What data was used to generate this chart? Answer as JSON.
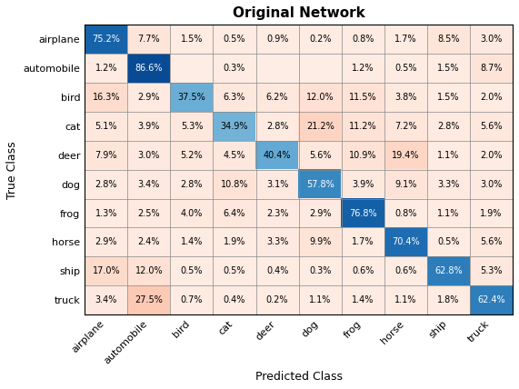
{
  "title": "Original Network",
  "xlabel": "Predicted Class",
  "ylabel": "True Class",
  "classes": [
    "airplane",
    "automobile",
    "bird",
    "cat",
    "deer",
    "dog",
    "frog",
    "horse",
    "ship",
    "truck"
  ],
  "matrix": [
    [
      75.2,
      7.7,
      1.5,
      0.5,
      0.9,
      0.2,
      0.8,
      1.7,
      8.5,
      3.0
    ],
    [
      1.2,
      86.6,
      0.0,
      0.3,
      0.0,
      0.0,
      1.2,
      0.5,
      1.5,
      8.7
    ],
    [
      16.3,
      2.9,
      37.5,
      6.3,
      6.2,
      12.0,
      11.5,
      3.8,
      1.5,
      2.0
    ],
    [
      5.1,
      3.9,
      5.3,
      34.9,
      2.8,
      21.2,
      11.2,
      7.2,
      2.8,
      5.6
    ],
    [
      7.9,
      3.0,
      5.2,
      4.5,
      40.4,
      5.6,
      10.9,
      19.4,
      1.1,
      2.0
    ],
    [
      2.8,
      3.4,
      2.8,
      10.8,
      3.1,
      57.8,
      3.9,
      9.1,
      3.3,
      3.0
    ],
    [
      1.3,
      2.5,
      4.0,
      6.4,
      2.3,
      2.9,
      76.8,
      0.8,
      1.1,
      1.9
    ],
    [
      2.9,
      2.4,
      1.4,
      1.9,
      3.3,
      9.9,
      1.7,
      70.4,
      0.5,
      5.6
    ],
    [
      17.0,
      12.0,
      0.5,
      0.5,
      0.4,
      0.3,
      0.6,
      0.6,
      62.8,
      5.3
    ],
    [
      3.4,
      27.5,
      0.7,
      0.4,
      0.2,
      1.1,
      1.4,
      1.1,
      1.8,
      62.4
    ]
  ],
  "figsize": [
    5.71,
    4.28
  ],
  "dpi": 100,
  "title_fontsize": 11,
  "label_fontsize": 9,
  "tick_fontsize": 8,
  "cell_fontsize": 7,
  "vmin": 0,
  "vmax": 100
}
